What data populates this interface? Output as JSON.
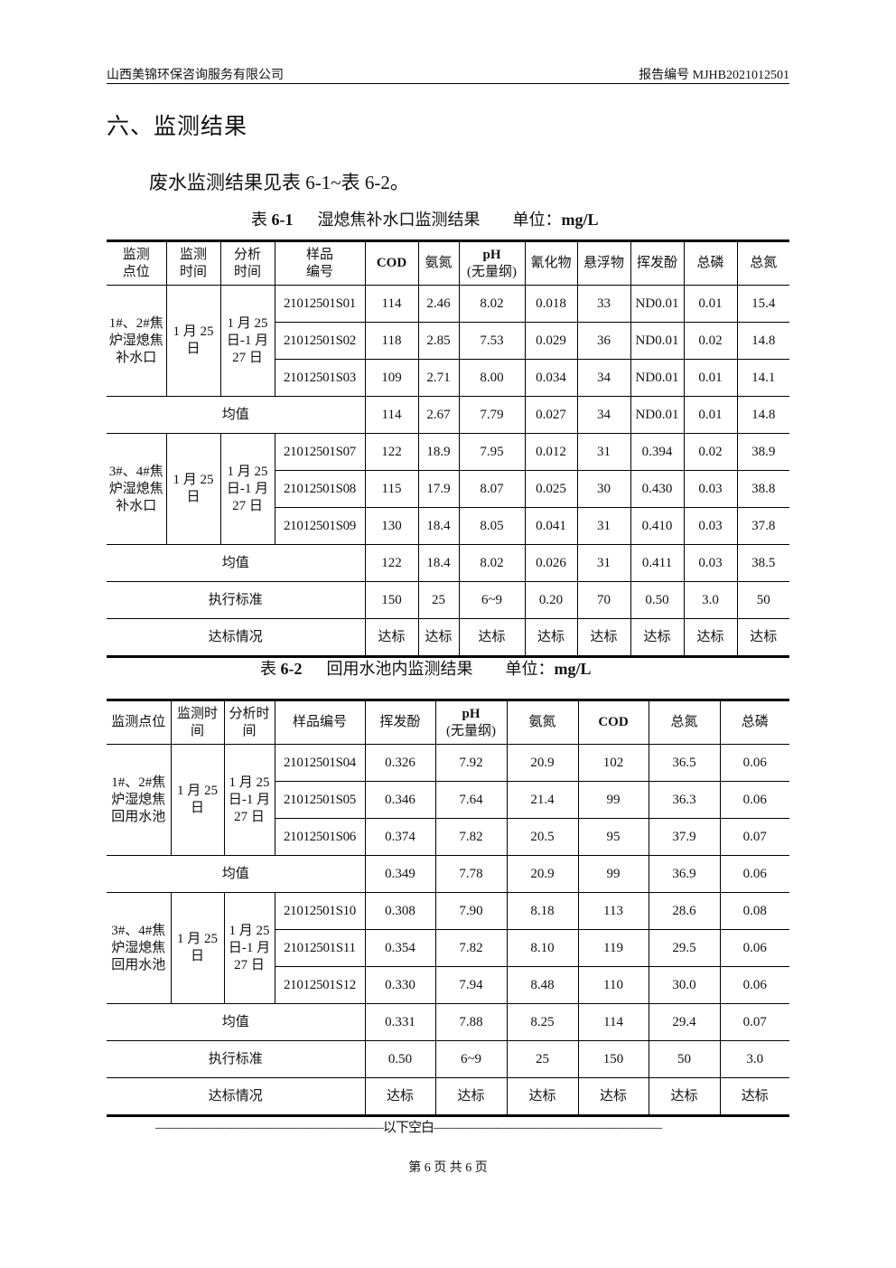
{
  "header": {
    "company": "山西美锦环保咨询服务有限公司",
    "report_no": "报告编号 MJHB2021012501"
  },
  "section_title": "六、监测结果",
  "intro": "废水监测结果见表 6-1~表 6-2。",
  "table1": {
    "caption_label": "表 ",
    "caption_num": "6-1",
    "caption_title": "      湿熄焦补水口监测结果        单位：",
    "caption_unit": "mg/L",
    "headers": [
      "监测\n点位",
      "监测\n时间",
      "分析\n时间",
      "样品\n编号",
      "COD",
      "氨氮",
      "pH\n(无量纲)",
      "氰化物",
      "悬浮物",
      "挥发酚",
      "总磷",
      "总氮"
    ],
    "groups": [
      {
        "location": "1#、2#焦炉湿熄焦补水口",
        "monitor_time": "1 月 25 日",
        "analysis_time": "1 月 25 日-1 月 27 日",
        "samples": [
          [
            "21012501S01",
            "114",
            "2.46",
            "8.02",
            "0.018",
            "33",
            "ND0.01",
            "0.01",
            "15.4"
          ],
          [
            "21012501S02",
            "118",
            "2.85",
            "7.53",
            "0.029",
            "36",
            "ND0.01",
            "0.02",
            "14.8"
          ],
          [
            "21012501S03",
            "109",
            "2.71",
            "8.00",
            "0.034",
            "34",
            "ND0.01",
            "0.01",
            "14.1"
          ]
        ],
        "mean_label": "均值",
        "mean": [
          "114",
          "2.67",
          "7.79",
          "0.027",
          "34",
          "ND0.01",
          "0.01",
          "14.8"
        ]
      },
      {
        "location": "3#、4#焦炉湿熄焦补水口",
        "monitor_time": "1 月 25 日",
        "analysis_time": "1 月 25 日-1 月 27 日",
        "samples": [
          [
            "21012501S07",
            "122",
            "18.9",
            "7.95",
            "0.012",
            "31",
            "0.394",
            "0.02",
            "38.9"
          ],
          [
            "21012501S08",
            "115",
            "17.9",
            "8.07",
            "0.025",
            "30",
            "0.430",
            "0.03",
            "38.8"
          ],
          [
            "21012501S09",
            "130",
            "18.4",
            "8.05",
            "0.041",
            "31",
            "0.410",
            "0.03",
            "37.8"
          ]
        ],
        "mean_label": "均值",
        "mean": [
          "122",
          "18.4",
          "8.02",
          "0.026",
          "31",
          "0.411",
          "0.03",
          "38.5"
        ]
      }
    ],
    "standard_label": "执行标准",
    "standard": [
      "150",
      "25",
      "6~9",
      "0.20",
      "70",
      "0.50",
      "3.0",
      "50"
    ],
    "status_label": "达标情况",
    "status": [
      "达标",
      "达标",
      "达标",
      "达标",
      "达标",
      "达标",
      "达标",
      "达标"
    ]
  },
  "table2": {
    "caption_label": "表 ",
    "caption_num": "6-2",
    "caption_title": "      回用水池内监测结果        单位：",
    "caption_unit": "mg/L",
    "headers": [
      "监测点位",
      "监测时\n间",
      "分析时\n间",
      "样品编号",
      "挥发酚",
      "pH\n(无量纲)",
      "氨氮",
      "COD",
      "总氮",
      "总磷"
    ],
    "groups": [
      {
        "location": "1#、2#焦炉湿熄焦回用水池",
        "monitor_time": "1 月 25 日",
        "analysis_time": "1 月 25 日-1 月 27 日",
        "samples": [
          [
            "21012501S04",
            "0.326",
            "7.92",
            "20.9",
            "102",
            "36.5",
            "0.06"
          ],
          [
            "21012501S05",
            "0.346",
            "7.64",
            "21.4",
            "99",
            "36.3",
            "0.06"
          ],
          [
            "21012501S06",
            "0.374",
            "7.82",
            "20.5",
            "95",
            "37.9",
            "0.07"
          ]
        ],
        "mean_label": "均值",
        "mean": [
          "0.349",
          "7.78",
          "20.9",
          "99",
          "36.9",
          "0.06"
        ]
      },
      {
        "location": "3#、4#焦炉湿熄焦回用水池",
        "monitor_time": "1 月 25 日",
        "analysis_time": "1 月 25 日-1 月 27 日",
        "samples": [
          [
            "21012501S10",
            "0.308",
            "7.90",
            "8.18",
            "113",
            "28.6",
            "0.08"
          ],
          [
            "21012501S11",
            "0.354",
            "7.82",
            "8.10",
            "119",
            "29.5",
            "0.06"
          ],
          [
            "21012501S12",
            "0.330",
            "7.94",
            "8.48",
            "110",
            "30.0",
            "0.06"
          ]
        ],
        "mean_label": "均值",
        "mean": [
          "0.331",
          "7.88",
          "8.25",
          "114",
          "29.4",
          "0.07"
        ]
      }
    ],
    "standard_label": "执行标准",
    "standard": [
      "0.50",
      "6~9",
      "25",
      "150",
      "50",
      "3.0"
    ],
    "status_label": "达标情况",
    "status": [
      "达标",
      "达标",
      "达标",
      "达标",
      "达标",
      "达标"
    ]
  },
  "blank_note": "——————————————————以下空白——————————————————",
  "footer": "第 6 页 共 6 页"
}
